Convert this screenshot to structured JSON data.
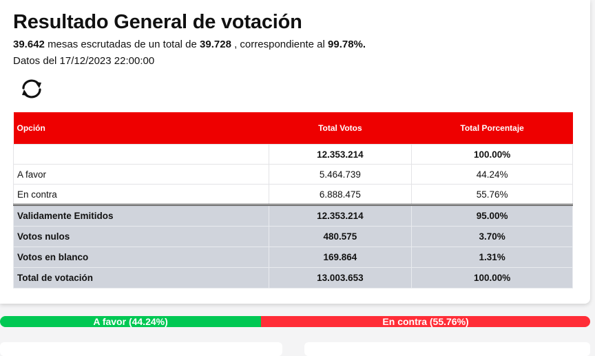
{
  "header": {
    "title": "Resultado General de votación",
    "mesas_escrutadas": "39.642",
    "mesas_text_1": "mesas escrutadas de un total de",
    "mesas_total": "39.728",
    "mesas_text_2": ", correspondiente al",
    "mesas_pct": "99.78%.",
    "date_text": "Datos del 17/12/2023 22:00:00",
    "refresh_icon": "refresh-icon"
  },
  "table": {
    "headers": [
      "Opción",
      "Total Votos",
      "Total Porcentaje"
    ],
    "total_row": {
      "label": "",
      "votos": "12.353.214",
      "pct": "100.00%"
    },
    "options": [
      {
        "label": "A favor",
        "votos": "5.464.739",
        "pct": "44.24%"
      },
      {
        "label": "En contra",
        "votos": "6.888.475",
        "pct": "55.76%"
      }
    ],
    "summary": [
      {
        "label": "Validamente Emitidos",
        "votos": "12.353.214",
        "pct": "95.00%"
      },
      {
        "label": "Votos nulos",
        "votos": "480.575",
        "pct": "3.70%"
      },
      {
        "label": "Votos en blanco",
        "votos": "169.864",
        "pct": "1.31%"
      },
      {
        "label": "Total de votación",
        "votos": "13.003.653",
        "pct": "100.00%"
      }
    ]
  },
  "progress": {
    "favor_label": "A favor (44.24%)",
    "favor_fraction": 0.4424,
    "contra_label": "En contra (55.76%)",
    "contra_fraction": 0.5576
  },
  "colors": {
    "header_red": "#ee0000",
    "favor_green": "#00c853",
    "contra_red": "#ff2d37",
    "summary_gray": "#d0d4dc"
  }
}
